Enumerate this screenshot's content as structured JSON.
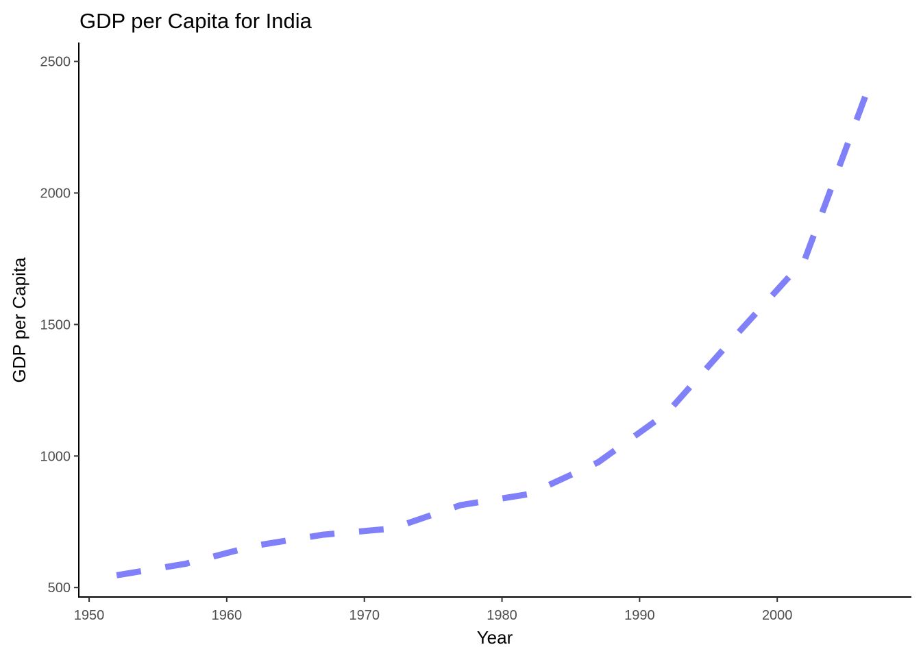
{
  "chart_data": {
    "type": "line",
    "title": "GDP per Capita for India",
    "xlabel": "Year",
    "ylabel": "GDP per Capita",
    "xlim": [
      1949.25,
      2009.75
    ],
    "ylim": [
      464,
      2572
    ],
    "x_ticks": [
      1950,
      1960,
      1970,
      1980,
      1990,
      2000
    ],
    "y_ticks": [
      500,
      1000,
      1500,
      2000,
      2500
    ],
    "grid": false,
    "legend": "none",
    "line_style": "dashed",
    "line_color": "#8080f8",
    "series": [
      {
        "x": [
          1952,
          1957,
          1962,
          1967,
          1972,
          1977,
          1982,
          1987,
          1992,
          1997,
          2002,
          2007
        ],
        "y": [
          546.6,
          590.1,
          658.3,
          700.8,
          724.0,
          813.3,
          855.7,
          976.5,
          1164.4,
          1458.8,
          1746.8,
          2452.2
        ]
      }
    ]
  }
}
